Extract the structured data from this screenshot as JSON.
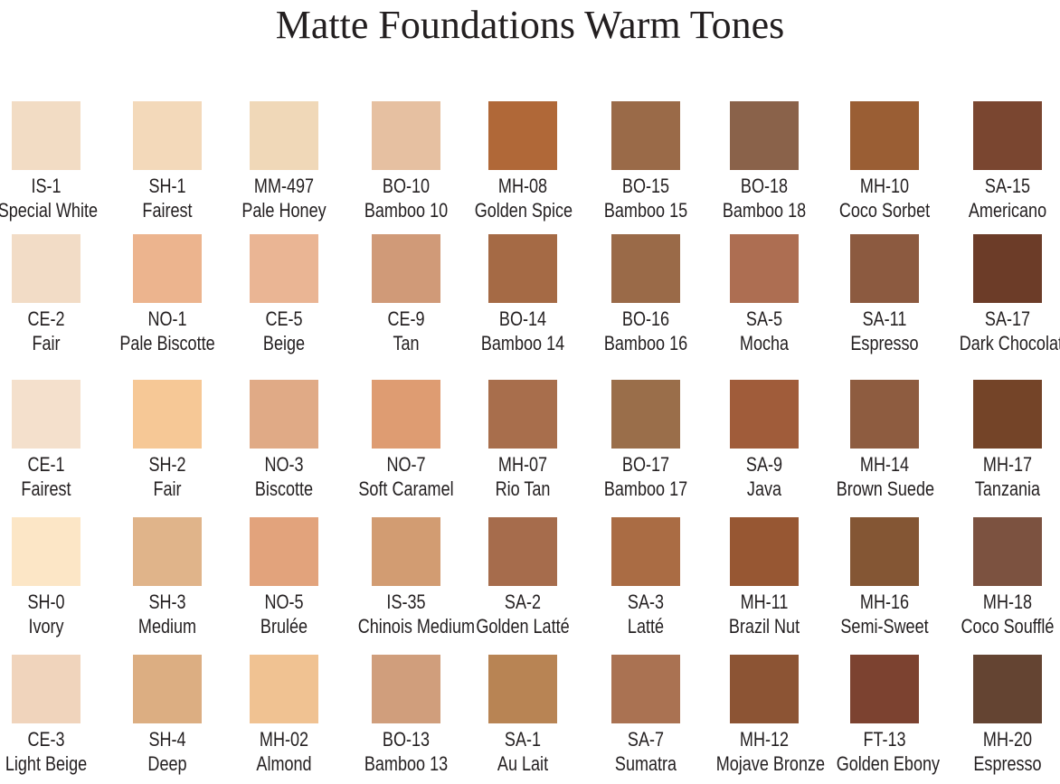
{
  "title": "Matte Foundations Warm Tones",
  "swatches": [
    [
      {
        "code": "IS-1",
        "name": "Special White",
        "color": "#f2dcc4"
      },
      {
        "code": "SH-1",
        "name": "Fairest",
        "color": "#f3d9ba"
      },
      {
        "code": "MM-497",
        "name": "Pale Honey",
        "color": "#f0d8b8"
      },
      {
        "code": "BO-10",
        "name": "Bamboo 10",
        "color": "#e6c0a1"
      },
      {
        "code": "MH-08",
        "name": "Golden Spice",
        "color": "#b06838"
      },
      {
        "code": "BO-15",
        "name": "Bamboo 15",
        "color": "#9a6a48"
      },
      {
        "code": "BO-18",
        "name": "Bamboo 18",
        "color": "#8a624a"
      },
      {
        "code": "MH-10",
        "name": "Coco Sorbet",
        "color": "#9a5e34"
      },
      {
        "code": "SA-15",
        "name": "Americano",
        "color": "#7a4630"
      }
    ],
    [
      {
        "code": "CE-2",
        "name": "Fair",
        "color": "#f2dcc6"
      },
      {
        "code": "NO-1",
        "name": "Pale Biscotte",
        "color": "#ecb48e"
      },
      {
        "code": "CE-5",
        "name": "Beige",
        "color": "#eab594"
      },
      {
        "code": "CE-9",
        "name": "Tan",
        "color": "#d09a78"
      },
      {
        "code": "BO-14",
        "name": "Bamboo 14",
        "color": "#a56a45"
      },
      {
        "code": "BO-16",
        "name": "Bamboo 16",
        "color": "#9a6a48"
      },
      {
        "code": "SA-5",
        "name": "Mocha",
        "color": "#ad6e52"
      },
      {
        "code": "SA-11",
        "name": "Espresso",
        "color": "#8c5a40"
      },
      {
        "code": "SA-17",
        "name": "Dark Chocolate",
        "color": "#6c3c28"
      }
    ],
    [
      {
        "code": "CE-1",
        "name": "Fairest",
        "color": "#f4e0cc"
      },
      {
        "code": "SH-2",
        "name": "Fair",
        "color": "#f6c896"
      },
      {
        "code": "NO-3",
        "name": "Biscotte",
        "color": "#e0aa86"
      },
      {
        "code": "NO-7",
        "name": "Soft Caramel",
        "color": "#de9c72"
      },
      {
        "code": "MH-07",
        "name": "Rio Tan",
        "color": "#a86e4c"
      },
      {
        "code": "BO-17",
        "name": "Bamboo 17",
        "color": "#9a6e4a"
      },
      {
        "code": "SA-9",
        "name": "Java",
        "color": "#a05c3a"
      },
      {
        "code": "MH-14",
        "name": "Brown Suede",
        "color": "#8e5c40"
      },
      {
        "code": "MH-17",
        "name": "Tanzania",
        "color": "#744428"
      }
    ],
    [
      {
        "code": "SH-0",
        "name": "Ivory",
        "color": "#fce6c6"
      },
      {
        "code": "SH-3",
        "name": "Medium",
        "color": "#e0b48a"
      },
      {
        "code": "NO-5",
        "name": "Brulée",
        "color": "#e2a37c"
      },
      {
        "code": "IS-35",
        "name": "Chinois Medium",
        "color": "#d29c72"
      },
      {
        "code": "SA-2",
        "name": "Golden Latté",
        "color": "#a66c4c"
      },
      {
        "code": "SA-3",
        "name": "Latté",
        "color": "#aa6c44"
      },
      {
        "code": "MH-11",
        "name": "Brazil Nut",
        "color": "#975733"
      },
      {
        "code": "MH-16",
        "name": "Semi-Sweet",
        "color": "#845634"
      },
      {
        "code": "MH-18",
        "name": "Coco Soufflé",
        "color": "#7c5240"
      }
    ],
    [
      {
        "code": "CE-3",
        "name": "Light Beige",
        "color": "#f0d4bc"
      },
      {
        "code": "SH-4",
        "name": "Deep",
        "color": "#dcae82"
      },
      {
        "code": "MH-02",
        "name": "Almond",
        "color": "#f0c292"
      },
      {
        "code": "BO-13",
        "name": "Bamboo 13",
        "color": "#d09e7c"
      },
      {
        "code": "SA-1",
        "name": "Au Lait",
        "color": "#b88454"
      },
      {
        "code": "SA-7",
        "name": "Sumatra",
        "color": "#aa7252"
      },
      {
        "code": "MH-12",
        "name": "Mojave Bronze",
        "color": "#8c5434"
      },
      {
        "code": "FT-13",
        "name": "Golden Ebony",
        "color": "#7c4230"
      },
      {
        "code": "MH-20",
        "name": "Espresso",
        "color": "#644432"
      }
    ]
  ]
}
